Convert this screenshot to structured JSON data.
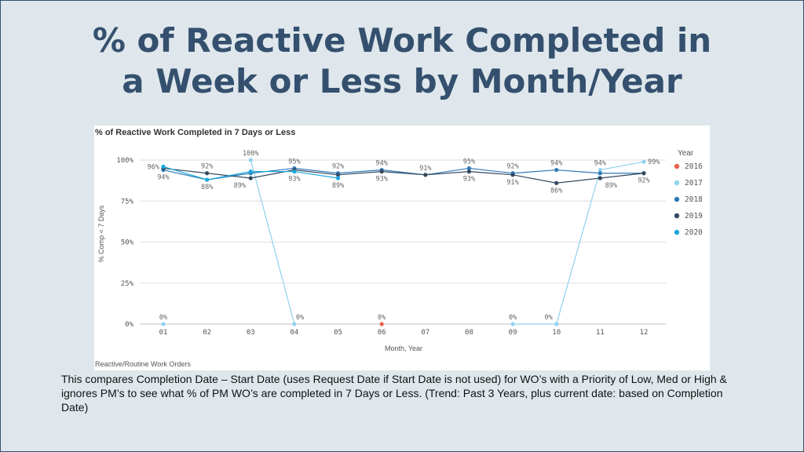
{
  "slide": {
    "title_line1": "% of Reactive Work Completed in",
    "title_line2": "a Week or Less by Month/Year",
    "description": "This compares Completion Date – Start Date (uses Request Date if Start Date is not used)  for WO’s with a Priority of Low, Med or High & ignores PM’s to see what % of PM WO’s are completed in 7 Days or Less. (Trend: Past 3 Years, plus current date: based on Completion Date)"
  },
  "chart_data": {
    "type": "line",
    "title": "% of Reactive Work Completed in 7 Days or Less",
    "xlabel": "Month, Year",
    "ylabel": "% Comp < 7 Days",
    "footnote": "Reactive/Routine Work Orders",
    "legend_title": "Year",
    "legend_position": "right",
    "grid": true,
    "ylim": [
      0,
      100
    ],
    "yticks": [
      0,
      25,
      50,
      75,
      100
    ],
    "ytick_labels": [
      "0%",
      "25%",
      "50%",
      "75%",
      "100%"
    ],
    "categories": [
      "01",
      "02",
      "03",
      "04",
      "05",
      "06",
      "07",
      "08",
      "09",
      "10",
      "11",
      "12"
    ],
    "series": [
      {
        "name": "2016",
        "color": "#e8604c",
        "values": [
          null,
          null,
          null,
          null,
          null,
          0,
          null,
          null,
          null,
          null,
          null,
          null
        ]
      },
      {
        "name": "2017",
        "color": "#8fd3ee",
        "values": [
          0,
          null,
          100,
          0,
          null,
          null,
          null,
          null,
          0,
          0,
          94,
          99
        ]
      },
      {
        "name": "2018",
        "color": "#2f78b8",
        "values": [
          94,
          88,
          92,
          95,
          92,
          94,
          91,
          95,
          92,
          94,
          92,
          92
        ]
      },
      {
        "name": "2019",
        "color": "#34495e",
        "values": [
          95,
          92,
          89,
          94,
          91,
          93,
          91,
          93,
          91,
          86,
          89,
          92
        ]
      },
      {
        "name": "2020",
        "color": "#1aa7dd",
        "values": [
          96,
          88,
          93,
          93,
          89,
          null,
          null,
          null,
          null,
          null,
          null,
          null
        ]
      }
    ],
    "data_labels": [
      {
        "category": "01",
        "value": 96,
        "text": "96%",
        "pos": "left"
      },
      {
        "category": "01",
        "value": 94,
        "text": "94%",
        "pos": "below"
      },
      {
        "category": "01",
        "value": 0,
        "text": "0%",
        "pos": "above"
      },
      {
        "category": "02",
        "value": 92,
        "text": "92%",
        "pos": "above"
      },
      {
        "category": "02",
        "value": 88,
        "text": "88%",
        "pos": "below"
      },
      {
        "category": "03",
        "value": 100,
        "text": "100%",
        "pos": "above"
      },
      {
        "category": "03",
        "value": 89,
        "text": "89%",
        "pos": "belowleft"
      },
      {
        "category": "04",
        "value": 95,
        "text": "95%",
        "pos": "above"
      },
      {
        "category": "04",
        "value": 93,
        "text": "93%",
        "pos": "below"
      },
      {
        "category": "04",
        "value": 0,
        "text": "0%",
        "pos": "aboveright"
      },
      {
        "category": "05",
        "value": 92,
        "text": "92%",
        "pos": "above"
      },
      {
        "category": "05",
        "value": 89,
        "text": "89%",
        "pos": "below"
      },
      {
        "category": "06",
        "value": 94,
        "text": "94%",
        "pos": "above"
      },
      {
        "category": "06",
        "value": 93,
        "text": "93%",
        "pos": "below"
      },
      {
        "category": "06",
        "value": 0,
        "text": "0%",
        "pos": "above"
      },
      {
        "category": "07",
        "value": 91,
        "text": "91%",
        "pos": "above"
      },
      {
        "category": "08",
        "value": 95,
        "text": "95%",
        "pos": "above"
      },
      {
        "category": "08",
        "value": 93,
        "text": "93%",
        "pos": "below"
      },
      {
        "category": "09",
        "value": 92,
        "text": "92%",
        "pos": "above"
      },
      {
        "category": "09",
        "value": 91,
        "text": "91%",
        "pos": "below"
      },
      {
        "category": "09",
        "value": 0,
        "text": "0%",
        "pos": "above"
      },
      {
        "category": "10",
        "value": 94,
        "text": "94%",
        "pos": "above"
      },
      {
        "category": "10",
        "value": 86,
        "text": "86%",
        "pos": "below"
      },
      {
        "category": "10",
        "value": 0,
        "text": "0%",
        "pos": "aboveleft"
      },
      {
        "category": "11",
        "value": 94,
        "text": "94%",
        "pos": "above"
      },
      {
        "category": "11",
        "value": 89,
        "text": "89%",
        "pos": "belowright"
      },
      {
        "category": "12",
        "value": 99,
        "text": "99%",
        "pos": "right"
      },
      {
        "category": "12",
        "value": 92,
        "text": "92%",
        "pos": "below"
      }
    ]
  }
}
